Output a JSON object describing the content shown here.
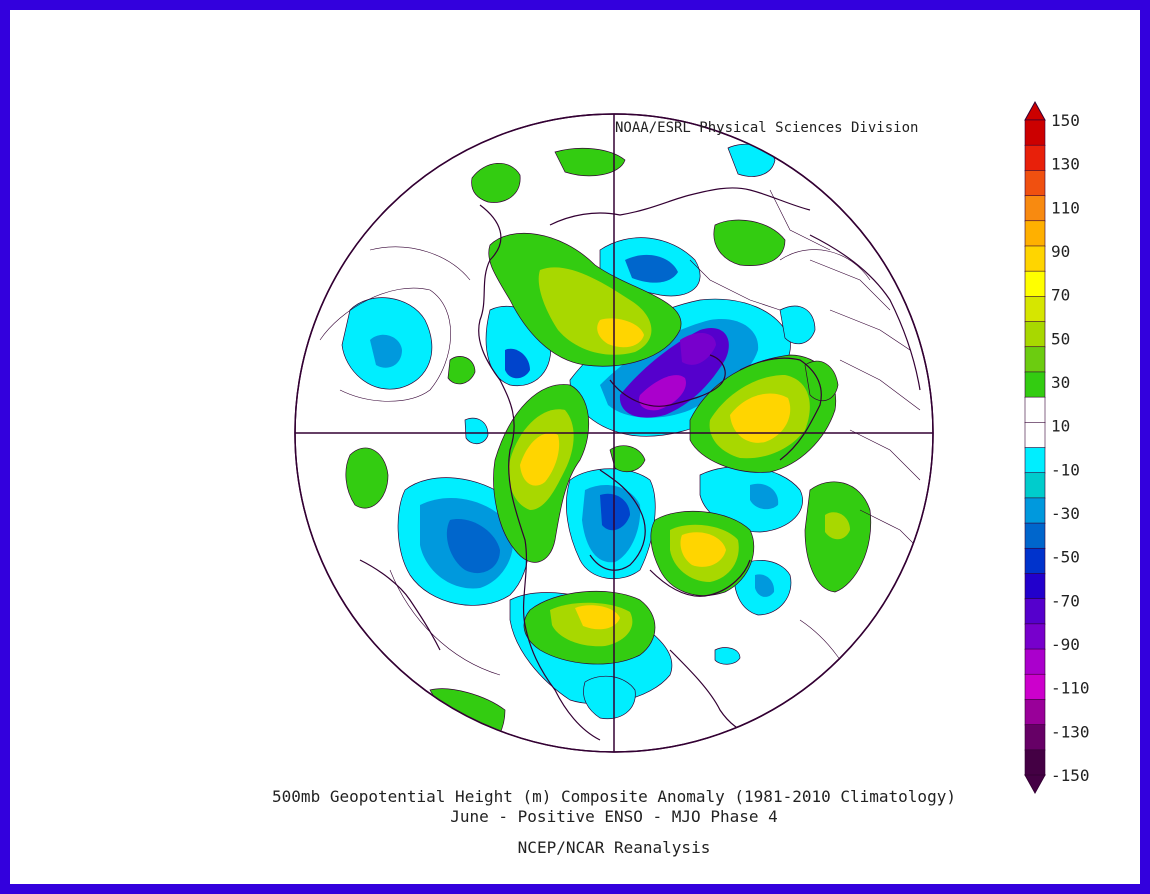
{
  "credit": "NOAA/ESRL Physical Sciences Division",
  "title_line1": "500mb Geopotential Height (m) Composite Anomaly (1981-2010 Climatology)",
  "title_line2": "June - Positive ENSO - MJO Phase 4",
  "source": "NCEP/NCAR Reanalysis",
  "colorbar": {
    "labels": [
      "150",
      "130",
      "110",
      "90",
      "70",
      "50",
      "30",
      "10",
      "-10",
      "-30",
      "-50",
      "-70",
      "-90",
      "-110",
      "-130",
      "-150"
    ],
    "colors": [
      "#cc0000",
      "#e8200a",
      "#f05010",
      "#f88a10",
      "#ffb000",
      "#ffd500",
      "#ffff00",
      "#d6e600",
      "#a8d800",
      "#6ccc10",
      "#33cc11",
      "#ffffff",
      "#ffffff",
      "#00eeff",
      "#00cccc",
      "#0099dd",
      "#0066cc",
      "#0033cc",
      "#2200cc",
      "#5500cc",
      "#7700cc",
      "#aa00cc",
      "#cc00cc",
      "#990099",
      "#660066",
      "#440044"
    ]
  },
  "colors": {
    "border": "#3300dd",
    "coast": "#330033",
    "neg_light": "#00eeff",
    "neg_mid": "#0099dd",
    "neg_dark": "#0044cc",
    "purple": "#7700cc",
    "magenta": "#cc00cc",
    "pos_green": "#33cc11",
    "pos_lime": "#a8d800",
    "pos_yellow": "#ffff00",
    "pos_gold": "#ffd500"
  }
}
